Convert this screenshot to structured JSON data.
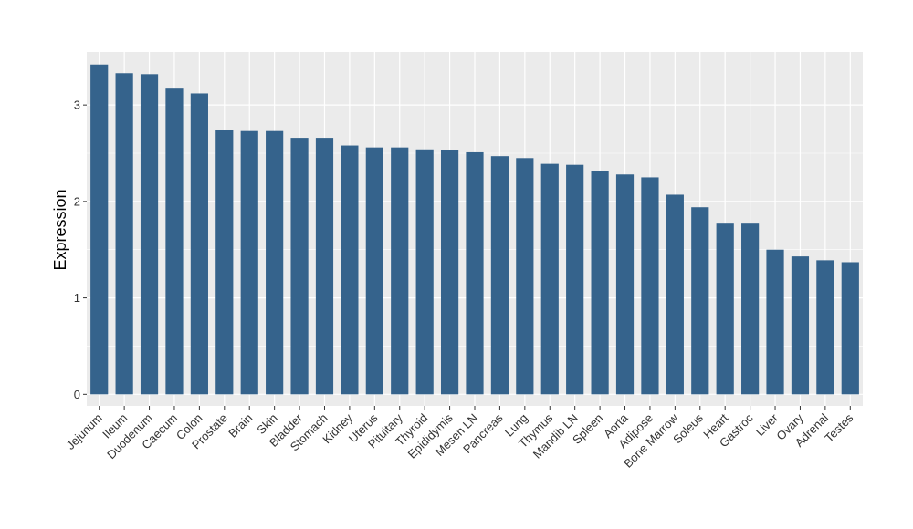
{
  "chart_data": {
    "type": "bar",
    "title": "",
    "xlabel": "",
    "ylabel": "Expression",
    "ylim": [
      -0.12,
      3.55
    ],
    "yticks": [
      0,
      1,
      2,
      3
    ],
    "ytick_labels": [
      "0",
      "1",
      "2",
      "3"
    ],
    "grid": true,
    "bar_color": "#35638c",
    "panel_color": "#ebebeb",
    "categories": [
      "Jejunum",
      "Ileum",
      "Duodenum",
      "Caecum",
      "Colon",
      "Prostate",
      "Brain",
      "Skin",
      "Bladder",
      "Stomach",
      "Kidney",
      "Uterus",
      "Pituitary",
      "Thyroid",
      "Epididymis",
      "Mesen LN",
      "Pancreas",
      "Lung",
      "Thymus",
      "Mandib LN",
      "Spleen",
      "Aorta",
      "Adipose",
      "Bone Marrow",
      "Soleus",
      "Heart",
      "Gastroc",
      "Liver",
      "Ovary",
      "Adrenal",
      "Testes"
    ],
    "values": [
      3.42,
      3.33,
      3.32,
      3.17,
      3.12,
      2.74,
      2.73,
      2.73,
      2.66,
      2.66,
      2.58,
      2.56,
      2.56,
      2.54,
      2.53,
      2.51,
      2.47,
      2.45,
      2.39,
      2.38,
      2.32,
      2.28,
      2.25,
      2.07,
      1.94,
      1.77,
      1.77,
      1.5,
      1.43,
      1.39,
      1.37
    ]
  }
}
